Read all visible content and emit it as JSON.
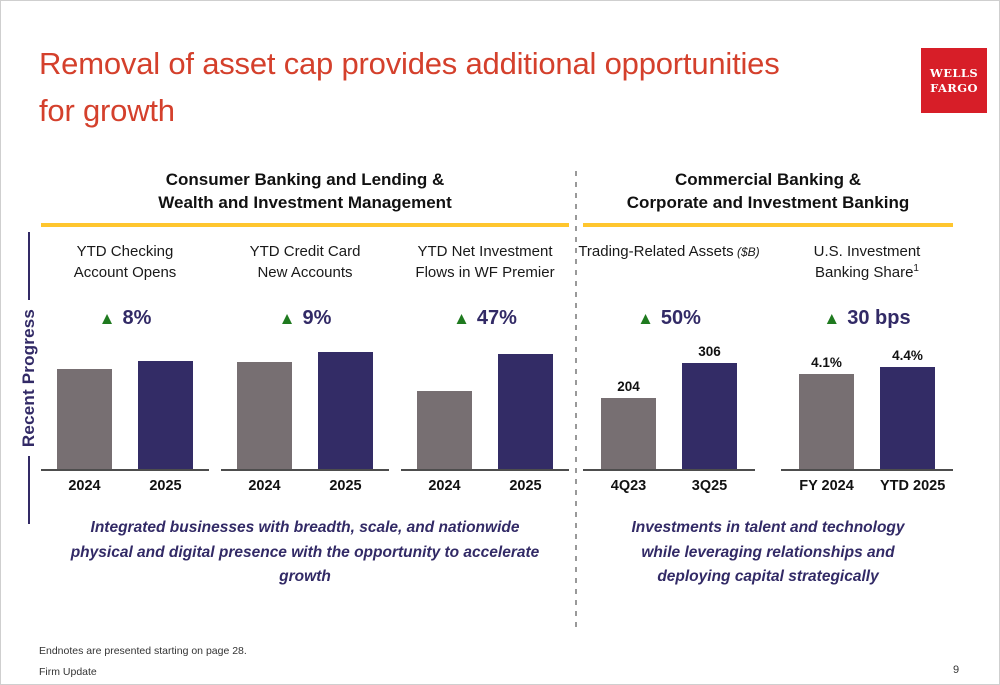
{
  "slide": {
    "title_line1": "Removal of asset cap provides additional opportunities",
    "title_line2": "for growth",
    "logo_line1": "WELLS",
    "logo_line2": "FARGO",
    "sidebar_label": "Recent Progress",
    "footer_endnote": "Endnotes are presented starting on page 28.",
    "footer_deck": "Firm Update",
    "footer_page": "9"
  },
  "colors": {
    "title_red": "#D4402C",
    "logo_red": "#D71E28",
    "navy_text": "#322A66",
    "bar_gray": "#776F72",
    "bar_navy": "#332C66",
    "gold_rule": "#FFC62E",
    "delta_green": "#1F7A1F"
  },
  "sections": [
    {
      "header_line1": "Consumer Banking and Lending &",
      "header_line2": "Wealth and Investment Management",
      "summary": "Integrated businesses with breadth, scale, and nationwide physical and digital presence with the opportunity to accelerate growth"
    },
    {
      "header_line1": "Commercial Banking &",
      "header_line2": "Corporate and Investment Banking",
      "summary": "Investments in talent and technology while leveraging relationships and deploying capital strategically"
    }
  ],
  "chart_data": [
    {
      "type": "bar",
      "section": 0,
      "title": "YTD Checking Account Opens",
      "delta": "8%",
      "categories": [
        "2024",
        "2025"
      ],
      "values": [
        100,
        108
      ],
      "values_estimated": true,
      "value_labels": [
        "",
        ""
      ],
      "bar_colors": [
        "gray",
        "navy"
      ]
    },
    {
      "type": "bar",
      "section": 0,
      "title": "YTD Credit Card New Accounts",
      "delta": "9%",
      "categories": [
        "2024",
        "2025"
      ],
      "values": [
        100,
        109
      ],
      "values_estimated": true,
      "value_labels": [
        "",
        ""
      ],
      "bar_colors": [
        "gray",
        "navy"
      ]
    },
    {
      "type": "bar",
      "section": 0,
      "title": "YTD Net Investment Flows in WF Premier",
      "delta": "47%",
      "categories": [
        "2024",
        "2025"
      ],
      "values": [
        100,
        147
      ],
      "values_estimated": true,
      "value_labels": [
        "",
        ""
      ],
      "bar_colors": [
        "gray",
        "navy"
      ]
    },
    {
      "type": "bar",
      "section": 1,
      "title": "Trading-Related Assets",
      "title_note": "($B)",
      "delta": "50%",
      "categories": [
        "4Q23",
        "3Q25"
      ],
      "values": [
        204,
        306
      ],
      "value_labels": [
        "204",
        "306"
      ],
      "bar_colors": [
        "gray",
        "navy"
      ]
    },
    {
      "type": "bar",
      "section": 1,
      "title": "U.S. Investment Banking Share",
      "title_sup": "1",
      "delta": "30 bps",
      "categories": [
        "FY 2024",
        "YTD 2025"
      ],
      "values": [
        4.1,
        4.4
      ],
      "value_labels": [
        "4.1%",
        "4.4%"
      ],
      "bar_colors": [
        "gray",
        "navy"
      ]
    }
  ]
}
